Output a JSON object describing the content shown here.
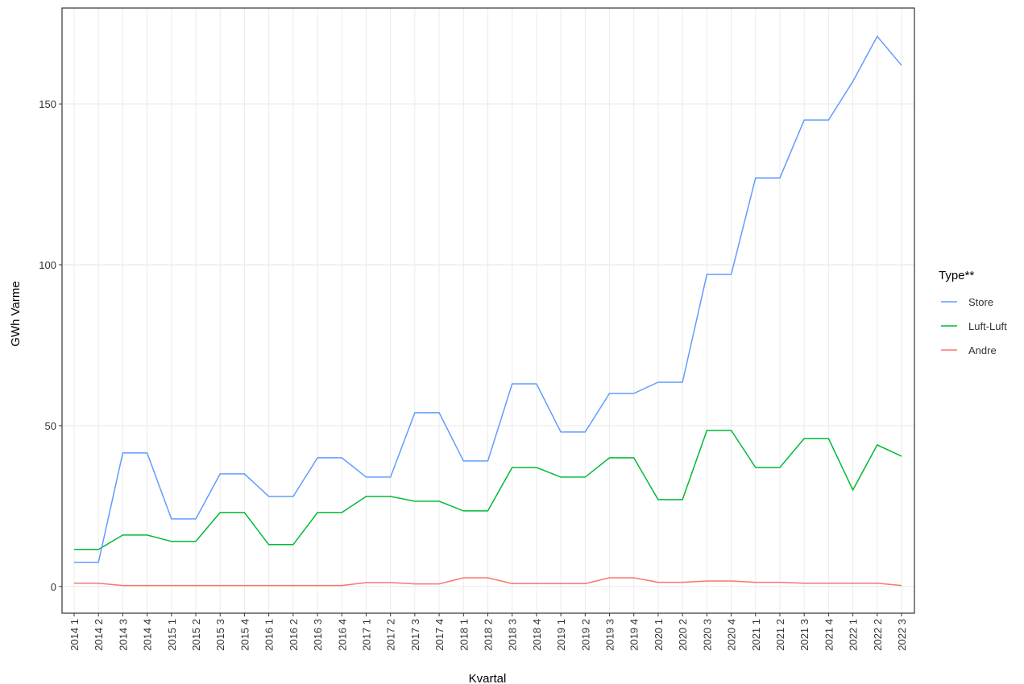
{
  "chart_data": {
    "type": "line",
    "y_label": "GWh Varme",
    "x_label": "Kvartal",
    "legend_title": "Type**",
    "legend_position": "right",
    "grid": true,
    "categories": [
      "2014 1",
      "2014 2",
      "2014 3",
      "2014 4",
      "2015 1",
      "2015 2",
      "2015 3",
      "2015 4",
      "2016 1",
      "2016 2",
      "2016 3",
      "2016 4",
      "2017 1",
      "2017 2",
      "2017 3",
      "2017 4",
      "2018 1",
      "2018 2",
      "2018 3",
      "2018 4",
      "2019 1",
      "2019 2",
      "2019 3",
      "2019 4",
      "2020 1",
      "2020 2",
      "2020 3",
      "2020 4",
      "2021 1",
      "2021 2",
      "2021 3",
      "2021 4",
      "2022 1",
      "2022 2",
      "2022 3"
    ],
    "series": [
      {
        "name": "Store",
        "color": "#619cff",
        "values": [
          7.5,
          7.5,
          41.5,
          41.5,
          21,
          21,
          35,
          35,
          28,
          28,
          40,
          40,
          34,
          34,
          54,
          54,
          39,
          39,
          63,
          63,
          48,
          48,
          60,
          60,
          63.5,
          63.5,
          97,
          97,
          127,
          127,
          145,
          145,
          157,
          171,
          162
        ]
      },
      {
        "name": "Luft-Luft",
        "color": "#00ba38",
        "values": [
          11.5,
          11.5,
          16,
          16,
          14,
          14,
          23,
          23,
          13,
          13,
          23,
          23,
          28,
          28,
          26.5,
          26.5,
          23.5,
          23.5,
          37,
          37,
          34,
          34,
          40,
          40,
          27,
          27,
          48.5,
          48.5,
          37,
          37,
          46,
          46,
          30,
          44,
          40.5
        ]
      },
      {
        "name": "Andre",
        "color": "#f8766d",
        "values": [
          1,
          1,
          0.3,
          0.3,
          0.3,
          0.3,
          0.3,
          0.3,
          0.3,
          0.3,
          0.3,
          0.3,
          1.2,
          1.2,
          0.8,
          0.8,
          2.7,
          2.7,
          0.9,
          0.9,
          0.9,
          0.9,
          2.7,
          2.7,
          1.3,
          1.3,
          1.7,
          1.7,
          1.3,
          1.3,
          1,
          1,
          1,
          1,
          0.3
        ]
      }
    ],
    "ylim": [
      -8.3,
      179.8
    ],
    "yticks": [
      0,
      50,
      100,
      150
    ]
  }
}
